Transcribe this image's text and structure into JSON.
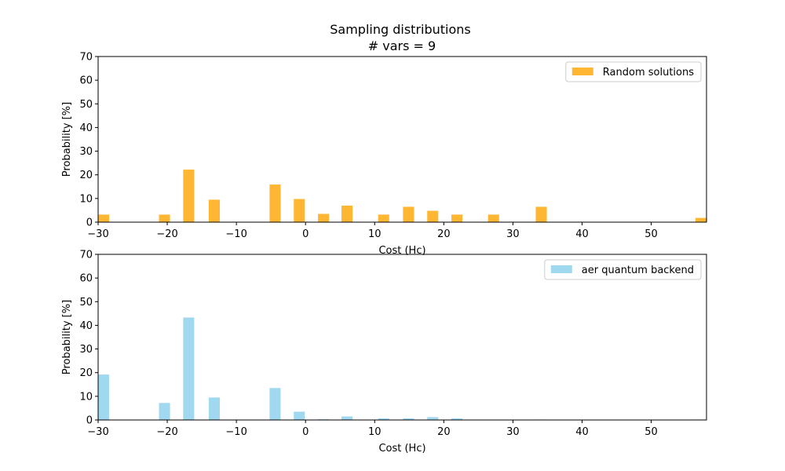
{
  "title": "Sampling distributions",
  "subtitle": "# vars = 9",
  "chart_data": [
    {
      "type": "bar",
      "xlabel": "Cost (Hc)",
      "ylabel": "Probability [%]",
      "xlim": [
        -30,
        58
      ],
      "ylim": [
        0,
        70
      ],
      "xticks": [
        -30,
        -20,
        -10,
        0,
        10,
        20,
        30,
        40,
        50
      ],
      "yticks": [
        0,
        10,
        20,
        30,
        40,
        50,
        60,
        70
      ],
      "grid": false,
      "legend_position": "top-right",
      "bar_width": 1.6,
      "series": [
        {
          "name": "Random solutions",
          "color": "#FFB733",
          "x": [
            -29.2,
            -20.4,
            -16.9,
            -13.2,
            -4.4,
            -0.9,
            2.6,
            6.0,
            11.3,
            14.9,
            18.4,
            21.9,
            27.2,
            34.1,
            57.2
          ],
          "values": [
            3.2,
            3.2,
            22.2,
            9.5,
            15.9,
            9.8,
            3.5,
            7.0,
            3.2,
            6.5,
            4.8,
            3.2,
            3.2,
            6.5,
            1.8
          ]
        }
      ]
    },
    {
      "type": "bar",
      "xlabel": "Cost (Hc)",
      "ylabel": "Probability [%]",
      "xlim": [
        -30,
        58
      ],
      "ylim": [
        0,
        70
      ],
      "xticks": [
        -30,
        -20,
        -10,
        0,
        10,
        20,
        30,
        40,
        50
      ],
      "yticks": [
        0,
        10,
        20,
        30,
        40,
        50,
        60,
        70
      ],
      "grid": false,
      "legend_position": "top-right",
      "bar_width": 1.6,
      "series": [
        {
          "name": "aer quantum backend",
          "color": "#A0D8EF",
          "x": [
            -29.2,
            -20.4,
            -16.9,
            -13.2,
            -4.4,
            -0.9,
            2.6,
            6.0,
            11.3,
            14.9,
            18.4,
            21.9,
            34.1,
            57.2
          ],
          "values": [
            19.2,
            7.2,
            43.3,
            9.5,
            13.5,
            3.5,
            0.3,
            1.5,
            0.7,
            0.7,
            1.2,
            0.7,
            0.2,
            0.2
          ]
        }
      ]
    }
  ]
}
